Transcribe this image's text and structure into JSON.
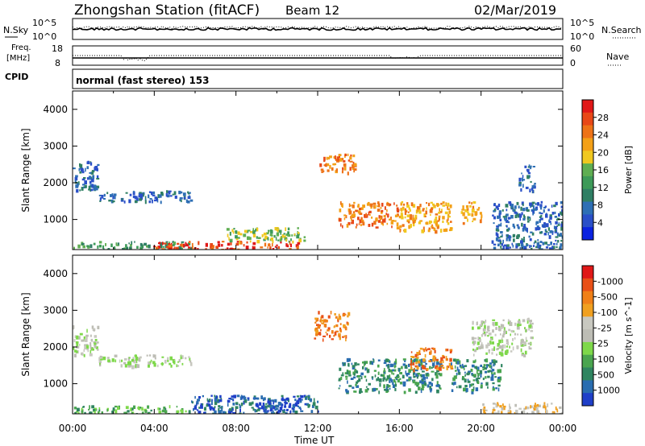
{
  "header": {
    "station": "Zhongshan Station (fitACF)",
    "beam": "Beam 12",
    "date": "02/Mar/2019"
  },
  "strip_nsky": {
    "left_label": "N.Sky",
    "left_ticks": [
      "10^5",
      "10^0"
    ],
    "right_label": "N.Search",
    "right_ticks": [
      "10^5",
      "10^0"
    ]
  },
  "strip_freq": {
    "left_label_1": "Freq.",
    "left_label_2": "[MHz]",
    "left_ticks": [
      "18",
      "8"
    ],
    "right_label": "Nave",
    "right_ticks": [
      "60",
      "0"
    ]
  },
  "cpid": {
    "label": "CPID",
    "value": "normal (fast stereo) 153"
  },
  "xaxis": {
    "label": "Time UT",
    "ticks": [
      "00:00",
      "04:00",
      "08:00",
      "12:00",
      "16:00",
      "20:00",
      "00:00"
    ]
  },
  "chart_data": [
    {
      "type": "heatmap",
      "panel": "power",
      "ylabel": "Slant Range [km]",
      "yticks": [
        1000,
        2000,
        3000,
        4000
      ],
      "ylim": [
        180,
        4500
      ],
      "xlim_hours": [
        0,
        24
      ],
      "colorbar_label": "Power [dB]",
      "colorbar_ticks": [
        "4",
        "8",
        "12",
        "16",
        "20",
        "24",
        "28"
      ],
      "colorbar_colors": [
        "#0a22e0",
        "#2a4fc8",
        "#2e6fb5",
        "#2f7f64",
        "#3d9a58",
        "#5fae52",
        "#f0c820",
        "#f3a018",
        "#ee7318",
        "#e84818",
        "#e01818"
      ],
      "regions": [
        {
          "t0": 0.0,
          "t1": 5.8,
          "r0": 200,
          "r1": 420,
          "level": 4
        },
        {
          "t0": 3.8,
          "t1": 11.0,
          "r0": 200,
          "r1": 420,
          "level": 9
        },
        {
          "t0": 7.5,
          "t1": 11.5,
          "r0": 420,
          "r1": 800,
          "level": 5
        },
        {
          "t0": 0.0,
          "t1": 1.2,
          "r0": 1800,
          "r1": 2600,
          "level": 2
        },
        {
          "t0": 1.2,
          "t1": 5.8,
          "r0": 1500,
          "r1": 1800,
          "level": 2
        },
        {
          "t0": 12.0,
          "t1": 13.8,
          "r0": 2300,
          "r1": 2800,
          "level": 8
        },
        {
          "t0": 13.0,
          "t1": 16.0,
          "r0": 800,
          "r1": 1500,
          "level": 8
        },
        {
          "t0": 16.0,
          "t1": 18.5,
          "r0": 700,
          "r1": 1500,
          "level": 7
        },
        {
          "t0": 19.0,
          "t1": 20.0,
          "r0": 900,
          "r1": 1500,
          "level": 7
        },
        {
          "t0": 20.5,
          "t1": 24.0,
          "r0": 200,
          "r1": 1500,
          "level": 2
        },
        {
          "t0": 21.8,
          "t1": 22.6,
          "r0": 1800,
          "r1": 2500,
          "level": 2
        }
      ]
    },
    {
      "type": "heatmap",
      "panel": "velocity",
      "ylabel": "Slant Range [km]",
      "yticks": [
        1000,
        2000,
        3000,
        4000
      ],
      "ylim": [
        180,
        4500
      ],
      "xlim_hours": [
        0,
        24
      ],
      "colorbar_label": "Velocity [m s^-1]",
      "colorbar_ticks": [
        "1000",
        "500",
        "100",
        "25",
        "-25",
        "-100",
        "-500",
        "-1000"
      ],
      "colorbar_colors": [
        "#1f3fc8",
        "#2a6db0",
        "#2f8560",
        "#4aa54f",
        "#7ed84a",
        "#bdbdb5",
        "#c8c8c0",
        "#f0a020",
        "#f08018",
        "#e85018",
        "#e01818"
      ],
      "regions": [
        {
          "t0": 0.0,
          "t1": 1.2,
          "r0": 1800,
          "r1": 2600,
          "level": 5
        },
        {
          "t0": 1.2,
          "t1": 5.8,
          "r0": 1500,
          "r1": 1800,
          "level": 5
        },
        {
          "t0": 0.0,
          "t1": 5.8,
          "r0": 200,
          "r1": 420,
          "level": 3
        },
        {
          "t0": 5.8,
          "t1": 12.0,
          "r0": 200,
          "r1": 700,
          "level": 1
        },
        {
          "t0": 9.3,
          "t1": 11.2,
          "r0": 250,
          "r1": 650,
          "level": 0
        },
        {
          "t0": 11.8,
          "t1": 13.5,
          "r0": 2200,
          "r1": 3000,
          "level": 8
        },
        {
          "t0": 13.0,
          "t1": 18.0,
          "r0": 800,
          "r1": 1700,
          "level": 2
        },
        {
          "t0": 16.5,
          "t1": 18.5,
          "r0": 1400,
          "r1": 2000,
          "level": 8
        },
        {
          "t0": 18.5,
          "t1": 21.0,
          "r0": 800,
          "r1": 1700,
          "level": 2
        },
        {
          "t0": 20.0,
          "t1": 24.0,
          "r0": 200,
          "r1": 500,
          "level": 6
        },
        {
          "t0": 19.5,
          "t1": 22.5,
          "r0": 1800,
          "r1": 2800,
          "level": 5
        }
      ]
    }
  ]
}
